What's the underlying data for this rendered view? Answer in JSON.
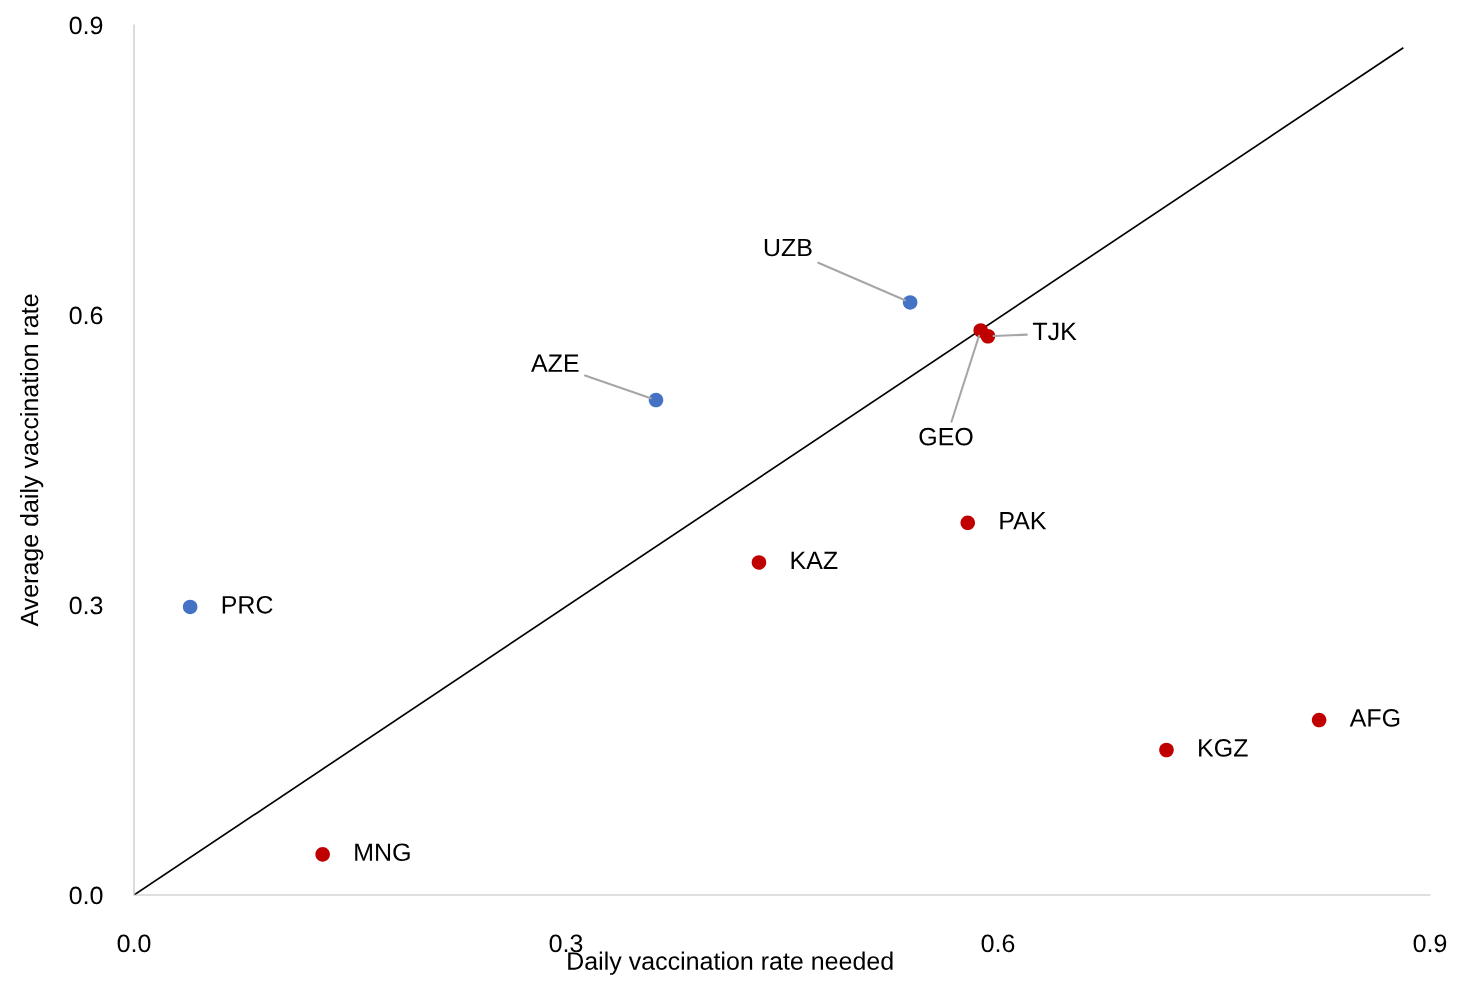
{
  "chart_data": {
    "type": "scatter",
    "xlabel": "Daily vaccination rate needed",
    "ylabel": "Average daily vaccination rate",
    "xlim": [
      0,
      0.9
    ],
    "ylim": [
      0,
      0.9
    ],
    "xticks": [
      {
        "value": 0,
        "label": "0.0"
      },
      0.3,
      0.6,
      0.9
    ],
    "yticks": [
      {
        "value": 0,
        "label": "0.0"
      },
      0.3,
      0.6,
      0.9
    ],
    "grid": false,
    "series": [
      {
        "marker": "circle",
        "x": [
          0.039,
          0.131,
          0.3625,
          0.539,
          0.434,
          0.579,
          0.588,
          0.593,
          0.717,
          0.823
        ],
        "values": [
          0.298,
          0.042,
          0.512,
          0.613,
          0.344,
          0.385,
          0.584,
          0.578,
          0.15,
          0.181
        ],
        "colors": [
          "#4472c4",
          "#c00000",
          "#4472c4",
          "#4472c4",
          "#c00000",
          "#c00000",
          "#c00000",
          "#c00000",
          "#c00000",
          "#c00000"
        ]
      },
      {
        "type": "line",
        "x": [
          0,
          0.881
        ],
        "values": [
          0,
          0.876
        ],
        "color": "#000000"
      }
    ],
    "annotations": [
      {
        "text": "PRC",
        "x": 0.039,
        "y": 0.298
      },
      {
        "text": "MNG",
        "x": 0.131,
        "y": 0.042
      },
      {
        "text": "AZE",
        "x": 0.3625,
        "y": 0.512
      },
      {
        "text": "UZB",
        "x": 0.539,
        "y": 0.613
      },
      {
        "text": "KAZ",
        "x": 0.434,
        "y": 0.344
      },
      {
        "text": "PAK",
        "x": 0.579,
        "y": 0.385
      },
      {
        "text": "GEO",
        "x": 0.588,
        "y": 0.584
      },
      {
        "text": "TJK",
        "x": 0.593,
        "y": 0.578
      },
      {
        "text": "KGZ",
        "x": 0.717,
        "y": 0.15
      },
      {
        "text": "AFG",
        "x": 0.823,
        "y": 0.181
      }
    ]
  }
}
